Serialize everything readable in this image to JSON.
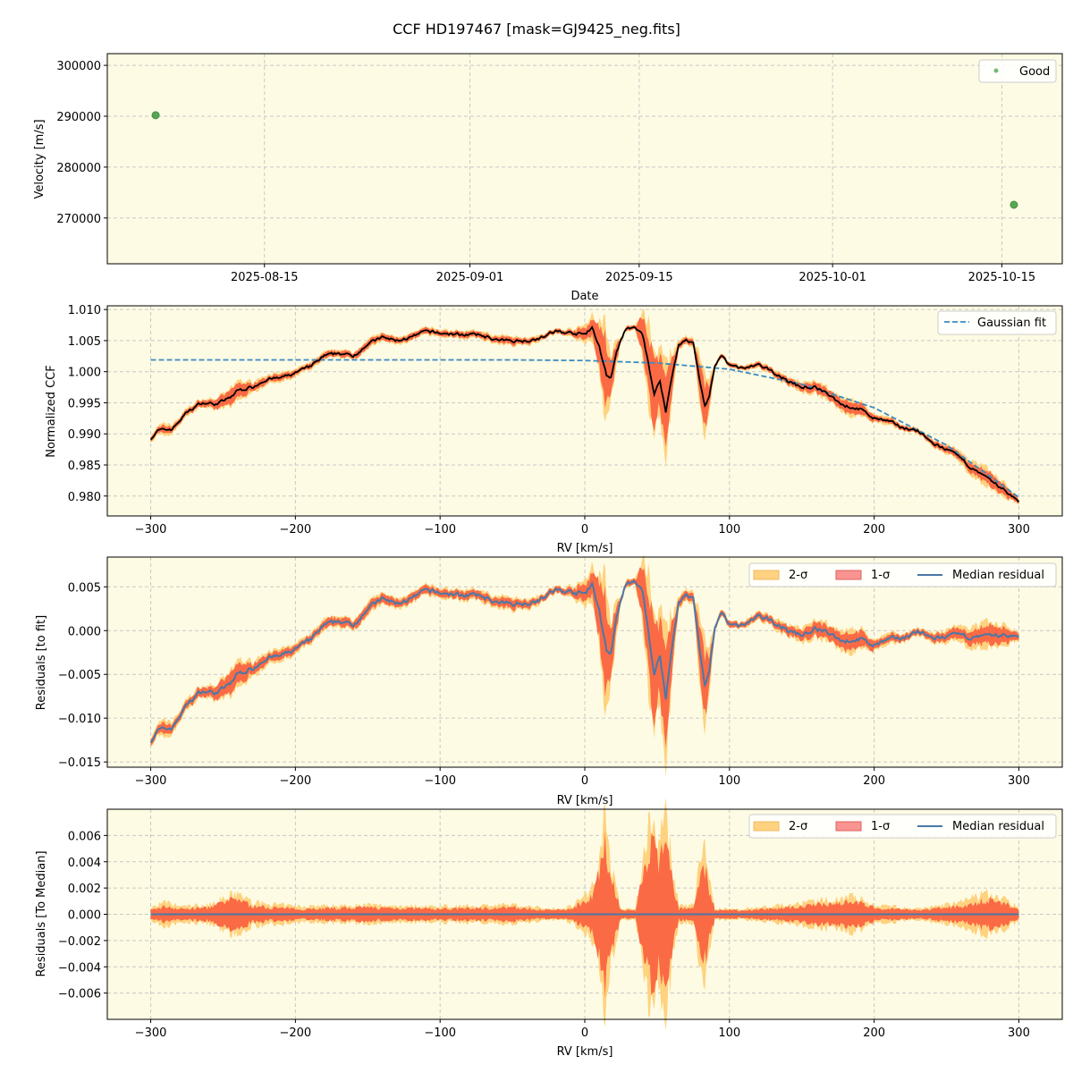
{
  "title": "CCF HD197467 [mask=GJ9425_neg.fits]",
  "colors": {
    "background": "#fdfbe3",
    "good": "#3a9a3a",
    "fit": "#3b8bc2",
    "median": "#4a78a8",
    "ccf": "#000000",
    "sigma2": "#fed27f",
    "sigma1": "#fa6a45"
  },
  "chart_data": [
    {
      "type": "scatter",
      "xlabel": "Date",
      "ylabel": "Velocity [m/s]",
      "xlim": [
        "2025-08-02",
        "2025-10-20"
      ],
      "ylim": [
        261000,
        302300
      ],
      "xticks": [
        "2025-08-15",
        "2025-09-01",
        "2025-09-15",
        "2025-10-01",
        "2025-10-15"
      ],
      "yticks": [
        270000,
        280000,
        290000,
        300000
      ],
      "grid": true,
      "legend": "top-right",
      "series": [
        {
          "name": "Good",
          "points": [
            {
              "x": "2025-08-06",
              "y": 290200
            },
            {
              "x": "2025-10-16",
              "y": 272600
            }
          ]
        }
      ]
    },
    {
      "type": "line",
      "xlabel": "RV [km/s]",
      "ylabel": "Normalized CCF",
      "xlim": [
        -330,
        330
      ],
      "ylim": [
        0.9768,
        1.0106
      ],
      "xticks": [
        -300,
        -200,
        -100,
        0,
        100,
        200,
        300
      ],
      "yticks": [
        0.98,
        0.985,
        0.99,
        0.995,
        1.0,
        1.005,
        1.01
      ],
      "grid": true,
      "legend": "top-right",
      "ccf": {
        "x": [
          -300,
          -295,
          -285,
          -275,
          -265,
          -255,
          -245,
          -240,
          -230,
          -220,
          -210,
          -200,
          -190,
          -180,
          -170,
          -160,
          -150,
          -140,
          -130,
          -120,
          -110,
          -100,
          -90,
          -80,
          -70,
          -60,
          -50,
          -40,
          -30,
          -20,
          -10,
          0,
          5,
          10,
          15,
          18,
          22,
          28,
          35,
          40,
          45,
          48,
          52,
          56,
          60,
          65,
          70,
          75,
          80,
          83,
          86,
          90,
          95,
          100,
          110,
          120,
          130,
          140,
          150,
          160,
          170,
          180,
          190,
          200,
          210,
          220,
          230,
          240,
          250,
          260,
          270,
          280,
          290,
          300
        ],
        "y": [
          0.9893,
          0.9905,
          0.9908,
          0.9935,
          0.995,
          0.9948,
          0.9958,
          0.997,
          0.9975,
          0.9988,
          0.999,
          0.9998,
          1.0008,
          1.0025,
          1.003,
          1.0025,
          1.0045,
          1.0055,
          1.005,
          1.0055,
          1.0065,
          1.0062,
          1.006,
          1.006,
          1.0058,
          1.005,
          1.005,
          1.005,
          1.0055,
          1.0065,
          1.0062,
          1.006,
          1.007,
          1.004,
          0.9995,
          0.999,
          1.003,
          1.0068,
          1.007,
          1.006,
          1.0,
          0.9965,
          0.9985,
          0.9935,
          0.999,
          1.0045,
          1.005,
          1.0045,
          0.998,
          0.9945,
          0.996,
          1.001,
          1.0025,
          1.001,
          1.0005,
          1.001,
          1.0,
          0.9985,
          0.9975,
          0.9975,
          0.996,
          0.9945,
          0.994,
          0.9925,
          0.992,
          0.991,
          0.9905,
          0.9885,
          0.9875,
          0.986,
          0.984,
          0.9825,
          0.981,
          0.979
        ]
      },
      "fit": {
        "name": "Gaussian fit",
        "x": [
          -300,
          -200,
          -100,
          -50,
          0,
          50,
          100,
          150,
          200,
          250,
          300
        ],
        "y": [
          1.0019,
          1.0019,
          1.0019,
          1.0019,
          1.0018,
          1.0014,
          1.0004,
          0.998,
          0.9942,
          0.9882,
          0.9798
        ]
      },
      "sigma": {
        "x": [
          -300,
          -290,
          -280,
          -260,
          -240,
          -230,
          -200,
          -150,
          -100,
          -50,
          -20,
          -10,
          0,
          5,
          10,
          14,
          18,
          25,
          35,
          42,
          47,
          52,
          56,
          60,
          65,
          75,
          82,
          86,
          90,
          110,
          140,
          170,
          185,
          200,
          230,
          260,
          280,
          295,
          300
        ],
        "one": [
          0.0003,
          0.0006,
          0.0004,
          0.0005,
          0.0012,
          0.0006,
          0.0004,
          0.0005,
          0.0004,
          0.0005,
          0.0003,
          0.0004,
          0.001,
          0.0015,
          0.003,
          0.005,
          0.003,
          0.0003,
          0.0003,
          0.004,
          0.005,
          0.004,
          0.005,
          0.003,
          0.0004,
          0.0005,
          0.004,
          0.002,
          0.0003,
          0.0003,
          0.0005,
          0.0008,
          0.001,
          0.0005,
          0.0003,
          0.0006,
          0.0011,
          0.0006,
          0.0003
        ],
        "two": [
          0.0005,
          0.0009,
          0.0006,
          0.0007,
          0.0016,
          0.0009,
          0.0006,
          0.0007,
          0.0006,
          0.0007,
          0.0004,
          0.0006,
          0.0014,
          0.0021,
          0.0042,
          0.007,
          0.0042,
          0.0004,
          0.0004,
          0.0056,
          0.007,
          0.0056,
          0.007,
          0.0042,
          0.0006,
          0.0007,
          0.0055,
          0.0028,
          0.0004,
          0.0004,
          0.0007,
          0.0011,
          0.0014,
          0.0007,
          0.0004,
          0.0009,
          0.0016,
          0.0009,
          0.0004
        ]
      }
    },
    {
      "type": "line",
      "xlabel": "RV [km/s]",
      "ylabel": "Residuals [to fit]",
      "xlim": [
        -330,
        330
      ],
      "ylim": [
        -0.0156,
        0.0084
      ],
      "xticks": [
        -300,
        -200,
        -100,
        0,
        100,
        200,
        300
      ],
      "yticks": [
        -0.015,
        -0.01,
        -0.005,
        0.0,
        0.005
      ],
      "grid": true,
      "legend": "top-right",
      "legend_entries": [
        "2-σ",
        "1-σ",
        "Median residual"
      ]
    },
    {
      "type": "line",
      "xlabel": "RV [km/s]",
      "ylabel": "Residuals [To Median]",
      "xlim": [
        -330,
        330
      ],
      "ylim": [
        -0.008,
        0.008
      ],
      "xticks": [
        -300,
        -200,
        -100,
        0,
        100,
        200,
        300
      ],
      "yticks": [
        -0.006,
        -0.004,
        -0.002,
        0.0,
        0.002,
        0.004,
        0.006
      ],
      "grid": true,
      "legend": "top-right",
      "legend_entries": [
        "2-σ",
        "1-σ",
        "Median residual"
      ]
    }
  ]
}
